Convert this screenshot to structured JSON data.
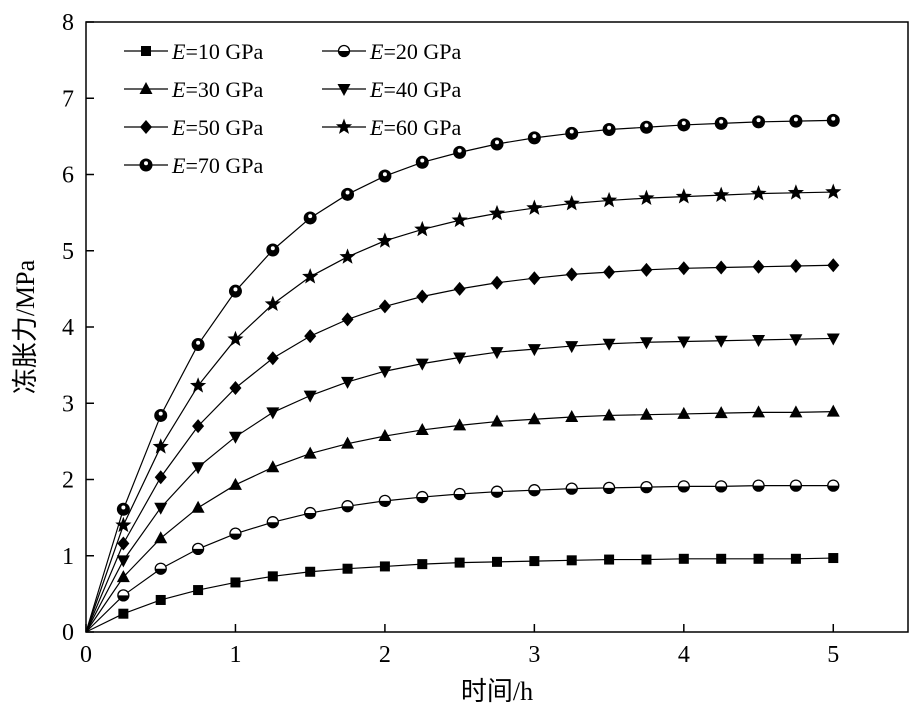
{
  "chart_data": {
    "type": "line",
    "xlabel": "时间/h",
    "ylabel": "冻胀力/MPa",
    "xlim": [
      0,
      5.5
    ],
    "ylim": [
      0,
      8
    ],
    "xticks": [
      0,
      1,
      2,
      3,
      4,
      5
    ],
    "yticks": [
      0,
      1,
      2,
      3,
      4,
      5,
      6,
      7,
      8
    ],
    "grid": false,
    "legend_position": "top-left",
    "x": [
      0,
      0.25,
      0.5,
      0.75,
      1.0,
      1.25,
      1.5,
      1.75,
      2.0,
      2.25,
      2.5,
      2.75,
      3.0,
      3.25,
      3.5,
      3.75,
      4.0,
      4.25,
      4.5,
      4.75,
      5.0
    ],
    "series": [
      {
        "name": "=10 GPa",
        "symbol": "E",
        "marker": "square",
        "color": "#000000",
        "values": [
          0,
          0.24,
          0.42,
          0.55,
          0.65,
          0.73,
          0.79,
          0.83,
          0.86,
          0.89,
          0.91,
          0.92,
          0.93,
          0.94,
          0.95,
          0.95,
          0.96,
          0.96,
          0.96,
          0.96,
          0.97
        ]
      },
      {
        "name": "=20 GPa",
        "symbol": "E",
        "marker": "half-circle",
        "color": "#000000",
        "values": [
          0,
          0.48,
          0.83,
          1.09,
          1.29,
          1.44,
          1.56,
          1.65,
          1.72,
          1.77,
          1.81,
          1.84,
          1.86,
          1.88,
          1.89,
          1.9,
          1.91,
          1.91,
          1.92,
          1.92,
          1.92
        ]
      },
      {
        "name": "=30 GPa",
        "symbol": "E",
        "marker": "triangle-up",
        "color": "#000000",
        "values": [
          0,
          0.72,
          1.23,
          1.63,
          1.93,
          2.16,
          2.34,
          2.47,
          2.57,
          2.65,
          2.71,
          2.76,
          2.79,
          2.82,
          2.84,
          2.85,
          2.86,
          2.87,
          2.88,
          2.88,
          2.89
        ]
      },
      {
        "name": "=40 GPa",
        "symbol": "E",
        "marker": "triangle-down",
        "color": "#000000",
        "values": [
          0,
          0.94,
          1.63,
          2.16,
          2.56,
          2.88,
          3.1,
          3.28,
          3.42,
          3.52,
          3.6,
          3.67,
          3.71,
          3.75,
          3.78,
          3.8,
          3.81,
          3.82,
          3.83,
          3.84,
          3.85
        ]
      },
      {
        "name": "=50 GPa",
        "symbol": "E",
        "marker": "diamond",
        "color": "#000000",
        "values": [
          0,
          1.16,
          2.03,
          2.7,
          3.2,
          3.59,
          3.88,
          4.1,
          4.27,
          4.4,
          4.5,
          4.58,
          4.64,
          4.69,
          4.72,
          4.75,
          4.77,
          4.78,
          4.79,
          4.8,
          4.81
        ]
      },
      {
        "name": "=60 GPa",
        "symbol": "E",
        "marker": "star",
        "color": "#000000",
        "values": [
          0,
          1.4,
          2.43,
          3.23,
          3.84,
          4.3,
          4.66,
          4.92,
          5.13,
          5.28,
          5.4,
          5.49,
          5.56,
          5.62,
          5.66,
          5.69,
          5.71,
          5.73,
          5.75,
          5.76,
          5.77
        ]
      },
      {
        "name": "=70 GPa",
        "symbol": "E",
        "marker": "circle-halfdot",
        "color": "#000000",
        "values": [
          0,
          1.61,
          2.84,
          3.77,
          4.47,
          5.01,
          5.43,
          5.74,
          5.98,
          6.16,
          6.29,
          6.4,
          6.48,
          6.54,
          6.59,
          6.62,
          6.65,
          6.67,
          6.69,
          6.7,
          6.71
        ]
      }
    ]
  }
}
